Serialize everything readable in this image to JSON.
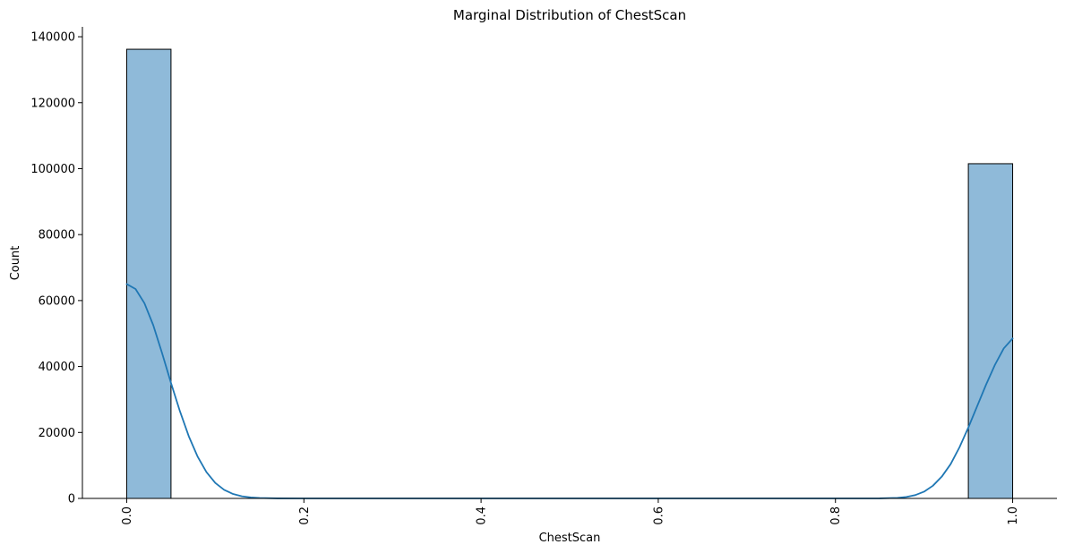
{
  "chart_data": {
    "type": "bar",
    "title": "Marginal Distribution of ChestScan",
    "xlabel": "ChestScan",
    "ylabel": "Count",
    "xlim": [
      -0.05,
      1.05
    ],
    "ylim": [
      0,
      143000
    ],
    "xticks": [
      0.0,
      0.2,
      0.4,
      0.6,
      0.8,
      1.0
    ],
    "xtick_labels": [
      "0.0",
      "0.2",
      "0.4",
      "0.6",
      "0.8",
      "1.0"
    ],
    "yticks": [
      0,
      20000,
      40000,
      60000,
      80000,
      100000,
      120000,
      140000
    ],
    "ytick_labels": [
      "0",
      "20000",
      "40000",
      "60000",
      "80000",
      "100000",
      "120000",
      "140000"
    ],
    "bins": [
      {
        "x0": 0.0,
        "x1": 0.05,
        "count": 136200
      },
      {
        "x0": 0.95,
        "x1": 1.0,
        "count": 101500
      }
    ],
    "kde": {
      "x": [
        0.0,
        0.01,
        0.02,
        0.03,
        0.04,
        0.05,
        0.06,
        0.07,
        0.08,
        0.09,
        0.1,
        0.11,
        0.12,
        0.13,
        0.14,
        0.15,
        0.17,
        0.2,
        0.3,
        0.5,
        0.7,
        0.8,
        0.85,
        0.87,
        0.88,
        0.89,
        0.9,
        0.91,
        0.92,
        0.93,
        0.94,
        0.95,
        0.96,
        0.97,
        0.98,
        0.99,
        1.0
      ],
      "y": [
        65000,
        63500,
        59200,
        52500,
        44000,
        35000,
        26500,
        18900,
        12700,
        8000,
        4700,
        2600,
        1350,
        650,
        300,
        130,
        20,
        0,
        0,
        0,
        0,
        0,
        20,
        180,
        450,
        1000,
        2050,
        3850,
        6600,
        10400,
        15500,
        21500,
        28000,
        34500,
        40500,
        45500,
        48500
      ]
    },
    "colors": {
      "bar_fill": "#8fbad9",
      "bar_edge": "#000000",
      "kde_line": "#1f77b4"
    },
    "spines": [
      "left",
      "bottom"
    ],
    "x_tick_rotation": "vertical"
  }
}
